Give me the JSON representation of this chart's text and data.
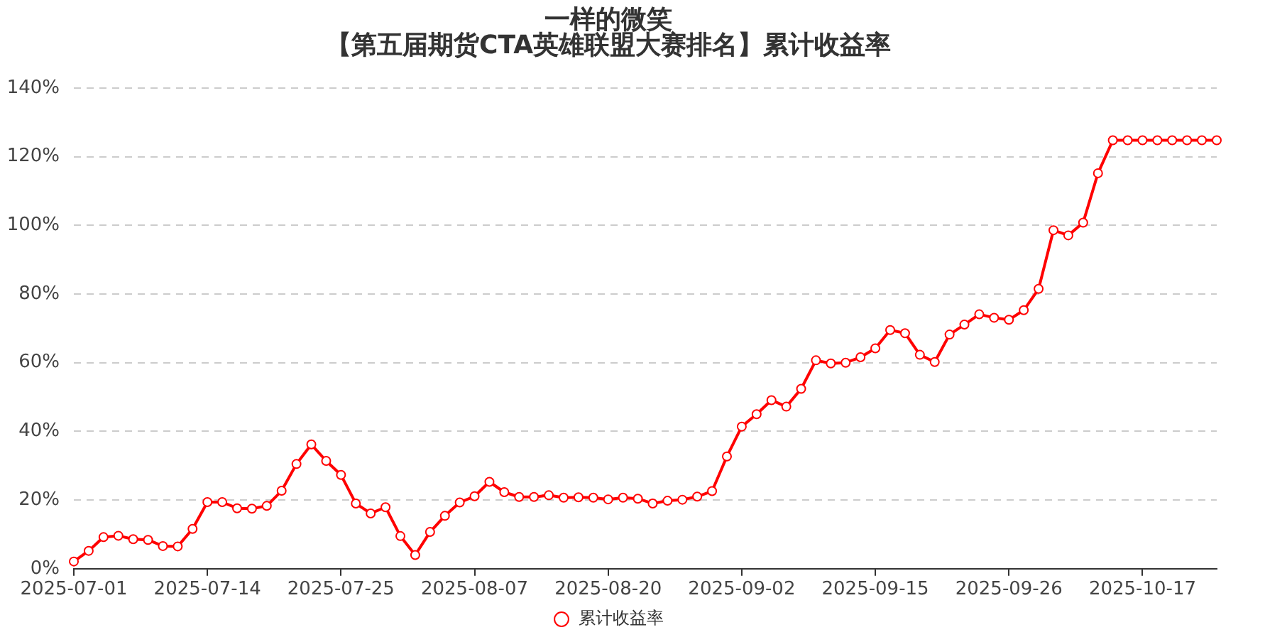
{
  "chart_data": {
    "type": "line",
    "title": "一样的微笑",
    "subtitle": "【第五届期货CTA英雄联盟大赛排名】累计收益率",
    "categories": [
      "2025-07-01",
      null,
      null,
      null,
      null,
      null,
      null,
      null,
      null,
      "2025-07-14",
      null,
      null,
      null,
      null,
      null,
      null,
      null,
      null,
      "2025-07-25",
      null,
      null,
      null,
      null,
      null,
      null,
      null,
      null,
      "2025-08-07",
      null,
      null,
      null,
      null,
      null,
      null,
      null,
      null,
      "2025-08-20",
      null,
      null,
      null,
      null,
      null,
      null,
      null,
      null,
      "2025-09-02",
      null,
      null,
      null,
      null,
      null,
      null,
      null,
      null,
      "2025-09-15",
      null,
      null,
      null,
      null,
      null,
      null,
      null,
      null,
      "2025-09-26",
      null,
      null,
      null,
      null,
      null,
      null,
      null,
      null,
      "2025-10-17",
      null,
      null,
      null,
      null,
      null
    ],
    "series": [
      {
        "name": "累计收益率",
        "color": "#ff0000",
        "values": [
          2.1,
          5.2,
          9.2,
          9.6,
          8.6,
          8.4,
          6.6,
          6.5,
          11.6,
          19.4,
          19.4,
          17.6,
          17.5,
          18.3,
          22.7,
          30.5,
          36.2,
          31.4,
          27.3,
          19.0,
          16.1,
          17.9,
          9.5,
          4.0,
          10.7,
          15.4,
          19.3,
          21.1,
          25.3,
          22.3,
          20.9,
          20.9,
          21.4,
          20.7,
          20.8,
          20.7,
          20.2,
          20.7,
          20.4,
          19.0,
          19.8,
          20.1,
          21.0,
          22.6,
          32.7,
          41.4,
          45.0,
          49.1,
          47.2,
          52.4,
          60.7,
          59.8,
          60.0,
          61.6,
          64.2,
          69.5,
          68.6,
          62.3,
          60.2,
          68.2,
          71.1,
          74.1,
          73.1,
          72.5,
          75.3,
          81.5,
          98.6,
          97.1,
          100.8,
          115.2,
          124.8,
          124.8,
          124.8,
          124.8,
          124.8,
          124.8,
          124.8,
          124.8
        ]
      }
    ],
    "ylim": [
      0,
      140
    ],
    "yticks": [
      {
        "value": 0,
        "label": "0%"
      },
      {
        "value": 20,
        "label": "20%"
      },
      {
        "value": 40,
        "label": "40%"
      },
      {
        "value": 60,
        "label": "60%"
      },
      {
        "value": 80,
        "label": "80%"
      },
      {
        "value": 100,
        "label": "100%"
      },
      {
        "value": 120,
        "label": "120%"
      },
      {
        "value": 140,
        "label": "140%"
      }
    ],
    "grid": "y",
    "legend": "bottom",
    "marker": "circle"
  }
}
